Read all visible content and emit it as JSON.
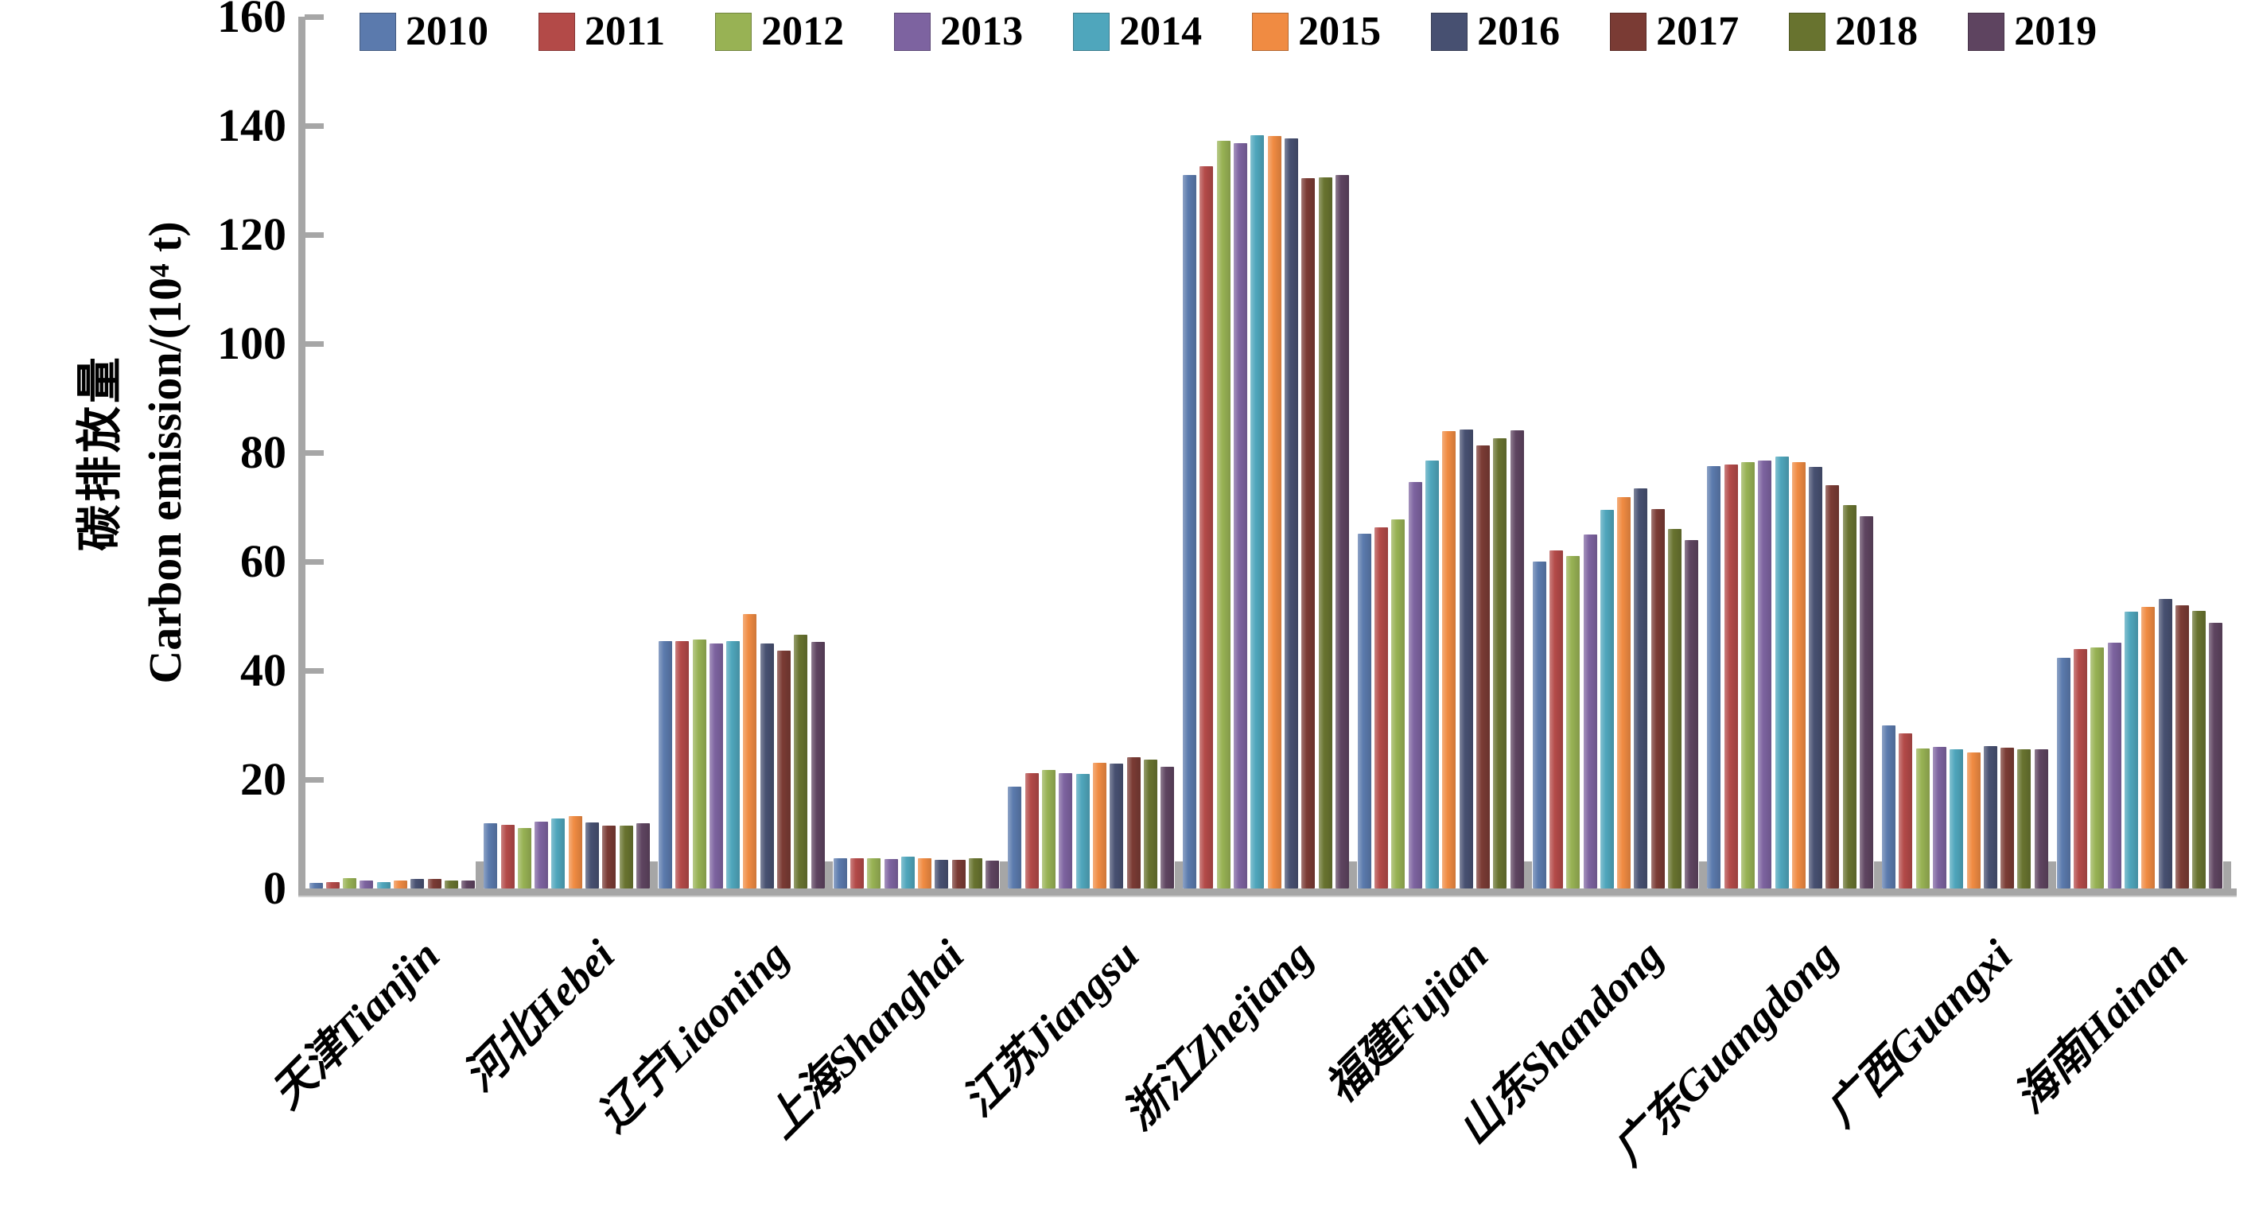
{
  "colors": {
    "axis": "#a6a6a6",
    "text": "#000000"
  },
  "chart_data": {
    "type": "bar",
    "title": "",
    "ylabel_zh": "碳排放量",
    "ylabel_en": "Carbon emission/(10⁴ t)",
    "ylim": [
      0,
      160
    ],
    "ytick_step": 20,
    "grid": false,
    "legend_position": "top",
    "categories": [
      "天津Tianjin",
      "河北Hebei",
      "辽宁Liaoning",
      "上海Shanghai",
      "江苏Jiangsu",
      "浙江Zhejiang",
      "福建Fujian",
      "山东Shandong",
      "广东Guangdong",
      "广西Guangxi",
      "海南Hainan"
    ],
    "series": [
      {
        "name": "2010",
        "color": "#5B7AAD",
        "values": [
          1.0,
          11.9,
          45.4,
          5.5,
          18.7,
          131.0,
          65.1,
          60.0,
          77.5,
          30.0,
          42.4
        ]
      },
      {
        "name": "2011",
        "color": "#B34A48",
        "values": [
          1.2,
          11.7,
          45.4,
          5.6,
          21.2,
          132.5,
          66.3,
          62.0,
          77.8,
          28.4,
          44.0
        ]
      },
      {
        "name": "2012",
        "color": "#98B254",
        "values": [
          1.9,
          11.1,
          45.7,
          5.6,
          21.7,
          137.2,
          67.8,
          61.0,
          78.2,
          25.7,
          44.2
        ]
      },
      {
        "name": "2013",
        "color": "#7D63A0",
        "values": [
          1.5,
          12.2,
          45.0,
          5.4,
          21.2,
          136.8,
          74.6,
          65.0,
          78.6,
          26.0,
          45.1
        ]
      },
      {
        "name": "2014",
        "color": "#4FA6BC",
        "values": [
          1.2,
          12.8,
          45.4,
          5.9,
          21.0,
          138.3,
          78.5,
          69.5,
          79.2,
          25.5,
          50.8
        ]
      },
      {
        "name": "2015",
        "color": "#F08B42",
        "values": [
          1.5,
          13.3,
          50.3,
          5.6,
          23.0,
          138.1,
          83.9,
          71.8,
          78.2,
          25.0,
          51.7
        ]
      },
      {
        "name": "2016",
        "color": "#475071",
        "values": [
          1.8,
          12.1,
          44.9,
          5.3,
          22.9,
          137.7,
          84.2,
          73.5,
          77.3,
          26.1,
          53.2
        ]
      },
      {
        "name": "2017",
        "color": "#7A3B34",
        "values": [
          1.8,
          11.6,
          43.6,
          5.2,
          24.1,
          130.3,
          81.3,
          69.7,
          74.0,
          25.9,
          52.0
        ]
      },
      {
        "name": "2018",
        "color": "#68732F",
        "values": [
          1.4,
          11.6,
          46.6,
          5.5,
          23.6,
          130.5,
          82.7,
          66.0,
          70.3,
          25.6,
          51.0
        ]
      },
      {
        "name": "2019",
        "color": "#5E4460",
        "values": [
          1.5,
          11.9,
          45.3,
          5.1,
          22.4,
          131.0,
          84.1,
          64.0,
          68.3,
          25.6,
          48.7
        ]
      }
    ]
  }
}
